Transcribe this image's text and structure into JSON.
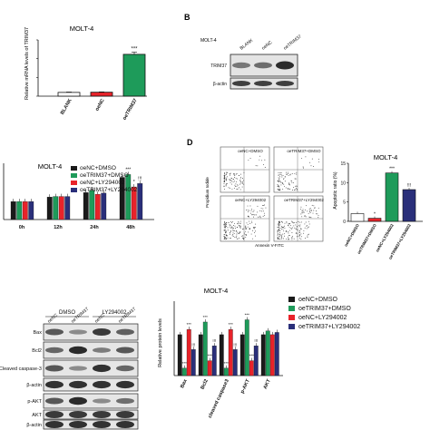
{
  "panel_letters": {
    "B": "B",
    "D": "D"
  },
  "colors": {
    "blank": "#ffffff",
    "oeNC": "#e8232a",
    "oeTRIM37": "#1e9b5a",
    "black": "#1a1a1a",
    "red": "#e8232a",
    "green": "#1e9b5a",
    "navy": "#2a2f7a"
  },
  "chart_data": [
    {
      "type": "bar",
      "id": "A",
      "title": "MOLT-4",
      "ylabel": "Relative mRNA levels of TRIM37",
      "categories": [
        "BLANK",
        "oeNC",
        "oeTRIM37"
      ],
      "values": [
        0.02,
        0.021,
        0.223
      ],
      "errors": [
        0.002,
        0.002,
        0.012
      ],
      "ylim": [
        0,
        0.3
      ],
      "annotations": [
        "",
        "",
        "***"
      ]
    },
    {
      "type": "bar",
      "id": "C",
      "title": "MOLT-4",
      "categories": [
        "0h",
        "12h",
        "24h",
        "48h"
      ],
      "series": [
        {
          "name": "oeNC+DMSO",
          "values": [
            0.32,
            0.4,
            0.48,
            0.75
          ]
        },
        {
          "name": "oeTRIM37+DMSO",
          "values": [
            0.32,
            0.41,
            0.52,
            0.8
          ]
        },
        {
          "name": "oeNC+LY294002",
          "values": [
            0.32,
            0.41,
            0.45,
            0.58
          ]
        },
        {
          "name": "oeTRIM37+LY294002",
          "values": [
            0.32,
            0.41,
            0.47,
            0.64
          ]
        }
      ],
      "ylim": [
        0,
        1.0
      ],
      "annotations": {
        "12h": [
          "",
          "",
          "",
          ""
        ],
        "24h": [
          "",
          "*",
          "",
          ""
        ],
        "48h": [
          "",
          "***",
          "*",
          "!!!"
        ]
      }
    },
    {
      "type": "bar",
      "id": "D-right",
      "title": "MOLT-4",
      "ylabel": "Apoptotic ratio (%)",
      "categories": [
        "oeNC+DMSO",
        "oeTRIM37+DMSO",
        "oeNC+LY294002",
        "oeTRIM37+LY294002"
      ],
      "values": [
        2.0,
        0.8,
        12.5,
        8.2
      ],
      "ylim": [
        0,
        15
      ],
      "annotations": [
        "",
        "*",
        "***",
        "!!!"
      ]
    },
    {
      "type": "bar",
      "id": "F",
      "title": "MOLT-4",
      "ylabel": "Relative protein levels",
      "categories": [
        "Bax",
        "Bcl2",
        "cleaved caspase3",
        "p-AKT",
        "AKT"
      ],
      "series": [
        {
          "name": "oeNC+DMSO",
          "values": [
            0.55,
            0.55,
            0.55,
            0.55,
            0.55
          ]
        },
        {
          "name": "oeTRIM37+DMSO",
          "values": [
            0.1,
            0.72,
            0.1,
            0.75,
            0.6
          ]
        },
        {
          "name": "oeNC+LY294002",
          "values": [
            0.62,
            0.2,
            0.62,
            0.2,
            0.55
          ]
        },
        {
          "name": "oeTRIM37+LY294002",
          "values": [
            0.35,
            0.4,
            0.35,
            0.4,
            0.58
          ]
        }
      ],
      "ylim": [
        0,
        1.0
      ],
      "annotations": {
        "Bax": [
          "",
          "***",
          "***",
          "!!!"
        ],
        "Bcl2": [
          "",
          "***",
          "***",
          "!!!"
        ],
        "cleaved caspase3": [
          "",
          "***",
          "***",
          "!!!"
        ],
        "p-AKT": [
          "",
          "***",
          "***",
          "!!!"
        ],
        "AKT": [
          "",
          "",
          "",
          ""
        ]
      }
    }
  ],
  "blot_B": {
    "cell": "MOLT-4",
    "lanes": [
      "BLANK",
      "oeNC",
      "oeTRIM37"
    ],
    "rows": [
      "TRIM37",
      "β-actin"
    ]
  },
  "blot_E": {
    "group_labels": [
      "DMSO",
      "LY294002"
    ],
    "lanes": [
      "oeNC",
      "oeTRIM37",
      "oeNC",
      "oeTRIM37"
    ],
    "rows": [
      "Bax",
      "Bcl2",
      "Cleaved caspase-3",
      "β-actin",
      "p-AKT",
      "AKT",
      "β-actin"
    ]
  },
  "flow": {
    "quad_labels": [
      "oeNC+DMSO",
      "oeTRIM37+DMSO",
      "oeNC+LY294002",
      "oeTRIM37+LY294002"
    ],
    "xlabel": "Annexin V-FITC",
    "ylabel": "Propidium Iodide"
  }
}
